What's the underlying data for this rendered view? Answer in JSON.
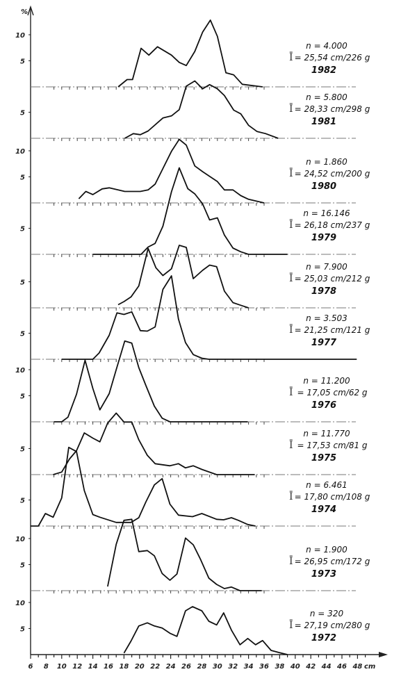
{
  "chart_data": {
    "type": "line",
    "title": "",
    "ylabel": "%",
    "xlabel": "cm",
    "x_ticks": [
      "6",
      "8",
      "10",
      "12",
      "14",
      "16",
      "18",
      "20",
      "22",
      "24",
      "26",
      "28",
      "30",
      "32",
      "34",
      "36",
      "38",
      "40",
      "42",
      "44",
      "46",
      "48"
    ],
    "xlim": [
      6,
      49
    ],
    "mean_symbol": "Ī",
    "panels": [
      {
        "year": "1982",
        "n": "n = 4.000",
        "mean": "= 25,54 cm/226 g",
        "y_ticks": [
          "10",
          "5"
        ],
        "points": [
          [
            17.25,
            0
          ],
          [
            18.4,
            1.4
          ],
          [
            19.1,
            1.4
          ],
          [
            20.2,
            7.4
          ],
          [
            21.2,
            6.1
          ],
          [
            22.3,
            7.7
          ],
          [
            24.1,
            6.1
          ],
          [
            25.1,
            4.7
          ],
          [
            26,
            4.1
          ],
          [
            27.1,
            6.8
          ],
          [
            28.1,
            10.5
          ],
          [
            29.1,
            12.8
          ],
          [
            30,
            9.7
          ],
          [
            31.1,
            2.7
          ],
          [
            32.1,
            2.3
          ],
          [
            33.2,
            0.5
          ],
          [
            35.8,
            0
          ]
        ]
      },
      {
        "year": "1981",
        "n": "n = 5.800",
        "mean": "= 28,33 cm/298 g",
        "y_ticks": [
          "5"
        ],
        "points": [
          [
            18.1,
            0
          ],
          [
            19.2,
            0.9
          ],
          [
            20.1,
            0.7
          ],
          [
            21.1,
            1.4
          ],
          [
            23,
            3.9
          ],
          [
            24.1,
            4.3
          ],
          [
            25.1,
            5.5
          ],
          [
            26,
            10
          ],
          [
            27.1,
            11
          ],
          [
            28.1,
            9.5
          ],
          [
            29,
            10.3
          ],
          [
            30,
            9.5
          ],
          [
            30.9,
            8.2
          ],
          [
            32.1,
            5.4
          ],
          [
            33,
            4.7
          ],
          [
            34,
            2.5
          ],
          [
            35.1,
            1.3
          ],
          [
            36.2,
            0.9
          ],
          [
            37.8,
            0
          ]
        ]
      },
      {
        "year": "1980",
        "n": "n = 1.860",
        "mean": "= 24,52 cm/200 g",
        "y_ticks": [
          "10",
          "5"
        ],
        "points": [
          [
            12.2,
            0.8
          ],
          [
            13.1,
            2.2
          ],
          [
            14,
            1.6
          ],
          [
            15.2,
            2.7
          ],
          [
            16.1,
            2.9
          ],
          [
            18.1,
            2.2
          ],
          [
            20.1,
            2.2
          ],
          [
            21.1,
            2.5
          ],
          [
            22,
            3.6
          ],
          [
            23,
            6.6
          ],
          [
            24.1,
            9.9
          ],
          [
            25.1,
            12.2
          ],
          [
            26,
            11.1
          ],
          [
            27.1,
            7.1
          ],
          [
            28.1,
            6
          ],
          [
            30,
            4.1
          ],
          [
            30.9,
            2.5
          ],
          [
            32,
            2.5
          ],
          [
            33,
            1.4
          ],
          [
            34,
            0.7
          ],
          [
            36,
            0
          ]
        ]
      },
      {
        "year": "1979",
        "n": "n = 16.146",
        "mean": "= 26,18 cm/237 g",
        "y_ticks": [
          "5"
        ],
        "points": [
          [
            14,
            0
          ],
          [
            20.2,
            0
          ],
          [
            21.1,
            1.4
          ],
          [
            22,
            2.1
          ],
          [
            23,
            5.4
          ],
          [
            24.1,
            12
          ],
          [
            25.1,
            16.6
          ],
          [
            26.2,
            12.6
          ],
          [
            27.1,
            11.6
          ],
          [
            28.1,
            9.7
          ],
          [
            29,
            6.6
          ],
          [
            30,
            7
          ],
          [
            30.9,
            3.7
          ],
          [
            32,
            1.2
          ],
          [
            33,
            0.5
          ],
          [
            34,
            0
          ],
          [
            39,
            0
          ]
        ]
      },
      {
        "year": "1978",
        "n": "n = 7.900",
        "mean": "= 25,03 cm/212 g",
        "y_ticks": [
          "5"
        ],
        "points": [
          [
            17.25,
            0.6
          ],
          [
            18,
            1.2
          ],
          [
            18.9,
            2.1
          ],
          [
            19.9,
            4.2
          ],
          [
            21.1,
            11.4
          ],
          [
            22.1,
            7.7
          ],
          [
            23,
            6.2
          ],
          [
            24.1,
            7.5
          ],
          [
            25.1,
            12
          ],
          [
            26,
            11.6
          ],
          [
            26.9,
            5.6
          ],
          [
            28.1,
            7.2
          ],
          [
            29,
            8.2
          ],
          [
            29.9,
            7.9
          ],
          [
            30.9,
            3.2
          ],
          [
            32,
            1
          ],
          [
            33,
            0.5
          ],
          [
            34,
            0
          ]
        ]
      },
      {
        "year": "1977",
        "n": "n = 3.503",
        "mean": "= 21,25 cm/121 g",
        "y_ticks": [
          "5"
        ],
        "points": [
          [
            10,
            0
          ],
          [
            14,
            0
          ],
          [
            14.8,
            1.2
          ],
          [
            16.1,
            4.6
          ],
          [
            17.1,
            8.9
          ],
          [
            18,
            8.6
          ],
          [
            19,
            9.1
          ],
          [
            20.1,
            5.5
          ],
          [
            21,
            5.4
          ],
          [
            22,
            6.2
          ],
          [
            23,
            13.4
          ],
          [
            24.1,
            16
          ],
          [
            25,
            7.7
          ],
          [
            25.9,
            3.2
          ],
          [
            26.9,
            0.9
          ],
          [
            28,
            0.2
          ],
          [
            28.9,
            0
          ],
          [
            47.9,
            0
          ]
        ]
      },
      {
        "year": "1976",
        "n": "n = 11.200",
        "mean": "= 17,05 cm/62 g",
        "y_ticks": [
          "10",
          "5"
        ],
        "points": [
          [
            9,
            0
          ],
          [
            10,
            0
          ],
          [
            10.8,
            0.9
          ],
          [
            11.9,
            5.3
          ],
          [
            13,
            11.8
          ],
          [
            14,
            6.4
          ],
          [
            14.9,
            2.3
          ],
          [
            16.1,
            5.4
          ],
          [
            17,
            10
          ],
          [
            18.1,
            15.5
          ],
          [
            19,
            15.1
          ],
          [
            19.9,
            10.4
          ],
          [
            20.8,
            7
          ],
          [
            21.9,
            3
          ],
          [
            22.9,
            0.7
          ],
          [
            23.9,
            0
          ],
          [
            33.9,
            0
          ]
        ]
      },
      {
        "year": "1975",
        "n": "n = 11.770",
        "mean": "= 17,53 cm/81 g",
        "y_ticks": [
          "5"
        ],
        "points": [
          [
            8.9,
            0
          ],
          [
            10,
            0.5
          ],
          [
            11,
            3
          ],
          [
            11.9,
            4.6
          ],
          [
            12.9,
            8
          ],
          [
            14,
            7
          ],
          [
            14.9,
            6.3
          ],
          [
            15.9,
            9.9
          ],
          [
            17,
            11.8
          ],
          [
            18,
            10.1
          ],
          [
            19,
            10.1
          ],
          [
            19.9,
            6.7
          ],
          [
            21,
            3.7
          ],
          [
            22,
            2.1
          ],
          [
            23.9,
            1.7
          ],
          [
            25,
            2.1
          ],
          [
            25.9,
            1.3
          ],
          [
            26.9,
            1.7
          ],
          [
            28,
            1
          ],
          [
            29.9,
            0
          ],
          [
            34.8,
            0
          ]
        ]
      },
      {
        "year": "1974",
        "n": "n = 6.461",
        "mean": "= 17,80 cm/108 g",
        "y_ticks": [
          "5"
        ],
        "points": [
          [
            6,
            0
          ],
          [
            7,
            0
          ],
          [
            7.9,
            2.4
          ],
          [
            8.9,
            1.7
          ],
          [
            10,
            5.4
          ],
          [
            10.9,
            15.1
          ],
          [
            11.9,
            14.3
          ],
          [
            12.9,
            6.8
          ],
          [
            14,
            2.2
          ],
          [
            14.9,
            1.7
          ],
          [
            17,
            0.7
          ],
          [
            18.9,
            0.7
          ],
          [
            19.9,
            1.6
          ],
          [
            20.8,
            4.6
          ],
          [
            21.9,
            7.9
          ],
          [
            22.9,
            9.1
          ],
          [
            23.9,
            4.2
          ],
          [
            25,
            2.1
          ],
          [
            26.8,
            1.8
          ],
          [
            28,
            2.4
          ],
          [
            29.9,
            1.3
          ],
          [
            30.8,
            1.2
          ],
          [
            31.8,
            1.6
          ],
          [
            32.7,
            1.1
          ],
          [
            33.9,
            0.3
          ],
          [
            34.9,
            0
          ]
        ]
      },
      {
        "year": "1973",
        "n": "n = 1.900",
        "mean": "= 26,95 cm/172 g",
        "y_ticks": [
          "10",
          "5"
        ],
        "points": [
          [
            15.9,
            0.8
          ],
          [
            17,
            8.9
          ],
          [
            18,
            13.5
          ],
          [
            19,
            13.7
          ],
          [
            19.9,
            7.5
          ],
          [
            21,
            7.7
          ],
          [
            21.9,
            6.7
          ],
          [
            22.9,
            3.3
          ],
          [
            23.9,
            2
          ],
          [
            24.8,
            3.2
          ],
          [
            25.9,
            10.1
          ],
          [
            26.9,
            8.8
          ],
          [
            27.8,
            6.1
          ],
          [
            28.9,
            2.4
          ],
          [
            29.9,
            1.2
          ],
          [
            30.9,
            0.4
          ],
          [
            31.8,
            0.7
          ],
          [
            32.9,
            0
          ],
          [
            35.7,
            0
          ]
        ]
      },
      {
        "year": "1972",
        "n": "n = 320",
        "mean": "= 27,19 cm/280 g",
        "y_ticks": [
          "10",
          "5"
        ],
        "points": [
          [
            18,
            0.3
          ],
          [
            18.9,
            2.6
          ],
          [
            19.9,
            5.5
          ],
          [
            21,
            6.1
          ],
          [
            21.9,
            5.5
          ],
          [
            22.9,
            5.1
          ],
          [
            23.9,
            4.1
          ],
          [
            24.8,
            3.5
          ],
          [
            25.9,
            8.4
          ],
          [
            26.8,
            9.2
          ],
          [
            28,
            8.4
          ],
          [
            28.9,
            6.4
          ],
          [
            29.9,
            5.7
          ],
          [
            30.8,
            8
          ],
          [
            31.8,
            4.7
          ],
          [
            32.9,
            1.9
          ],
          [
            33.9,
            3.1
          ],
          [
            34.9,
            1.9
          ],
          [
            35.8,
            2.7
          ],
          [
            36.9,
            0.8
          ],
          [
            37.9,
            0.4
          ],
          [
            39,
            0
          ]
        ]
      }
    ]
  }
}
